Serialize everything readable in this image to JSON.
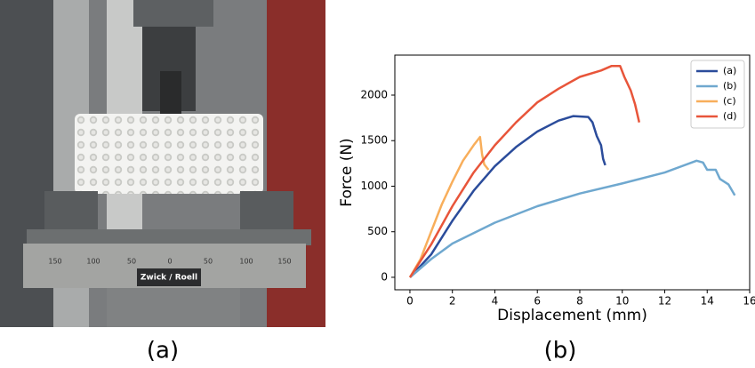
{
  "photo": {
    "brand": "Zwick / Roell",
    "scale_labels": [
      "150",
      "100",
      "50",
      "0",
      "50",
      "100",
      "150"
    ]
  },
  "captions": [
    "(a)",
    "(b)"
  ],
  "chart_data": {
    "type": "line",
    "xlabel": "Displacement (mm)",
    "ylabel": "Force (N)",
    "xlim": [
      -0.71,
      16.0
    ],
    "ylim": [
      -137,
      2439
    ],
    "xticks": [
      0,
      2,
      4,
      6,
      8,
      10,
      12,
      14,
      16
    ],
    "yticks": [
      0,
      500,
      1000,
      1500,
      2000
    ],
    "legend": "upper right",
    "series": [
      {
        "name": "(a)",
        "color": "#2b4c9b",
        "x": [
          0,
          1,
          2,
          3,
          4,
          5,
          6,
          7,
          7.7,
          8.4,
          8.6,
          8.8,
          9.0,
          9.1,
          9.2
        ],
        "values": [
          0,
          250,
          620,
          950,
          1220,
          1430,
          1600,
          1720,
          1770,
          1760,
          1700,
          1550,
          1450,
          1300,
          1230
        ]
      },
      {
        "name": "(b)",
        "color": "#6fa8cf",
        "x": [
          0,
          1,
          2,
          4,
          6,
          8,
          10,
          12,
          13.5,
          13.8,
          14.0,
          14.4,
          14.6,
          15.0,
          15.3
        ],
        "values": [
          0,
          200,
          370,
          600,
          780,
          920,
          1030,
          1150,
          1280,
          1260,
          1180,
          1180,
          1080,
          1020,
          900
        ]
      },
      {
        "name": "(c)",
        "color": "#f8ae5b",
        "x": [
          0,
          0.5,
          1,
          1.5,
          2,
          2.5,
          3,
          3.3,
          3.4,
          3.5,
          3.7
        ],
        "values": [
          0,
          200,
          500,
          800,
          1050,
          1280,
          1450,
          1540,
          1350,
          1240,
          1180
        ]
      },
      {
        "name": "(d)",
        "color": "#e8553a",
        "x": [
          0,
          1,
          2,
          3,
          4,
          5,
          6,
          7,
          8,
          9,
          9.5,
          9.9,
          10.1,
          10.4,
          10.6,
          10.8
        ],
        "values": [
          0,
          360,
          780,
          1150,
          1450,
          1700,
          1920,
          2070,
          2200,
          2270,
          2320,
          2320,
          2200,
          2050,
          1900,
          1700
        ]
      }
    ]
  }
}
